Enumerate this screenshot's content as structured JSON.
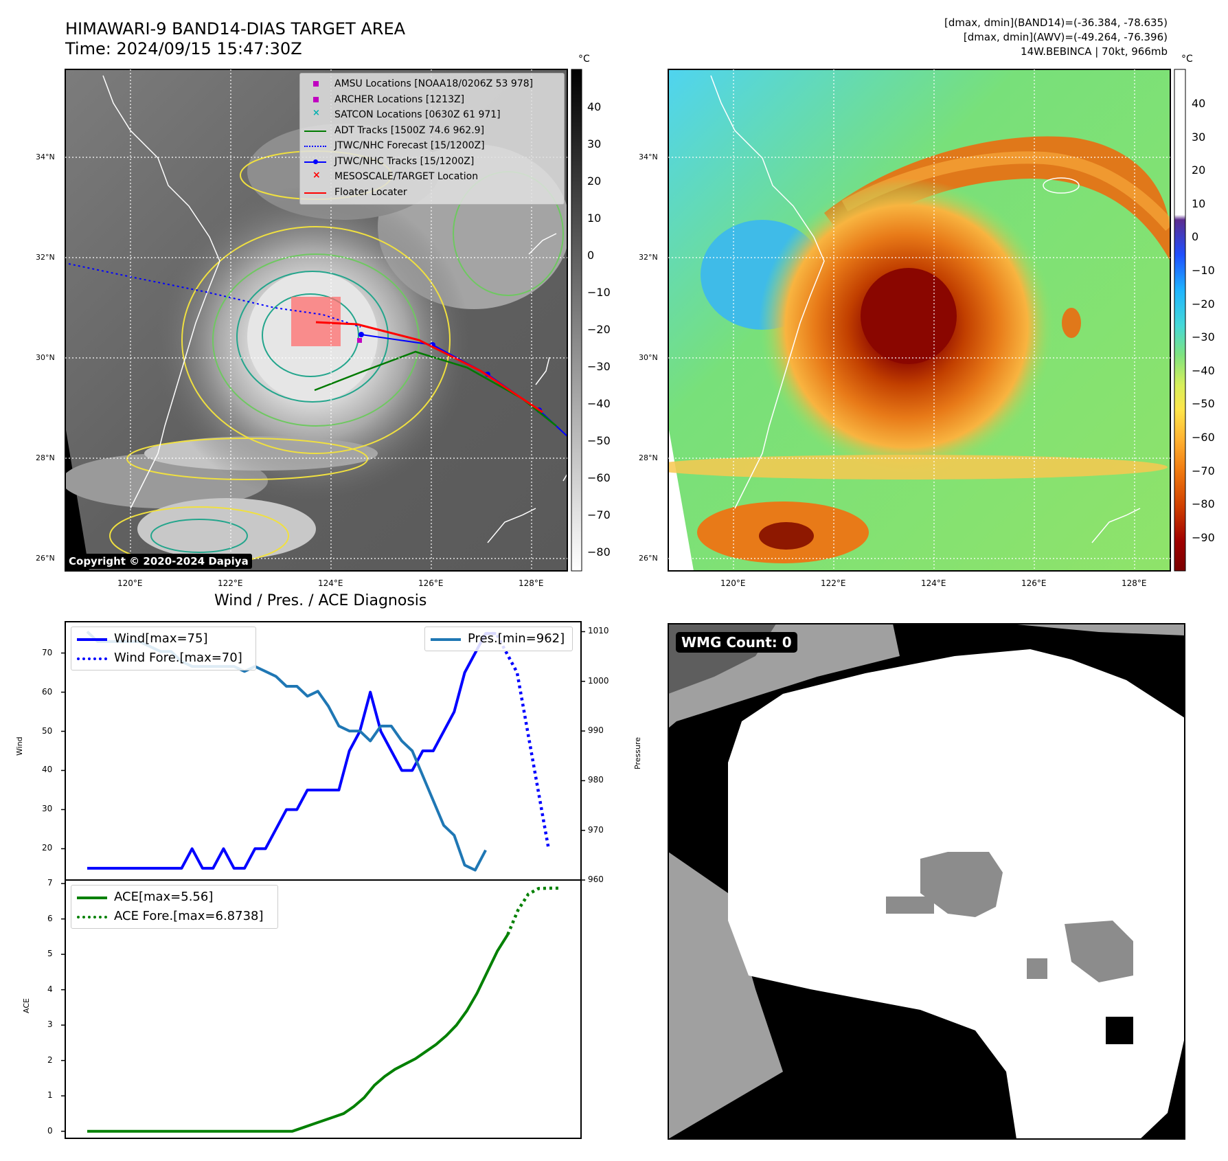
{
  "header": {
    "title": "HIMAWARI-9 BAND14-DIAS TARGET AREA",
    "time": "Time: 2024/09/15 15:47:30Z",
    "stats_band14": "[dmax, dmin](BAND14)=(-36.384, -78.635)",
    "stats_awv": "[dmax, dmin](AWV)=(-49.264, -76.396)",
    "storm": "14W.BEBINCA | 70kt, 966mb"
  },
  "maps": {
    "lat_labels": [
      "34°N",
      "32°N",
      "30°N",
      "28°N",
      "26°N"
    ],
    "lon_labels": [
      "120°E",
      "122°E",
      "124°E",
      "126°E",
      "128°E"
    ],
    "ir_colorbar": {
      "unit": "°C",
      "ticks": [
        "40",
        "30",
        "20",
        "10",
        "0",
        "−10",
        "−20",
        "−30",
        "−40",
        "−50",
        "−60",
        "−70",
        "−80"
      ]
    },
    "enh_colorbar": {
      "unit": "°C",
      "ticks": [
        "40",
        "30",
        "20",
        "10",
        "0",
        "−10",
        "−20",
        "−30",
        "−40",
        "−50",
        "−60",
        "−70",
        "−80",
        "−90"
      ]
    },
    "copyright": "Copyright © 2020-2024 Dapiya",
    "legend": [
      {
        "label": "AMSU Locations [NOAA18/0206Z 53 978]",
        "kind": "square",
        "color": "#c000c0"
      },
      {
        "label": "ARCHER Locations [1213Z]",
        "kind": "square",
        "color": "#c000c0"
      },
      {
        "label": "SATCON Locations [0630Z 61 971]",
        "kind": "x",
        "color": "#00b0b0"
      },
      {
        "label": "ADT Tracks [1500Z 74.6 962.9]",
        "kind": "line",
        "color": "#007a00"
      },
      {
        "label": "JTWC/NHC Forecast [15/1200Z]",
        "kind": "dotted",
        "color": "#0000ff"
      },
      {
        "label": "JTWC/NHC Tracks [15/1200Z]",
        "kind": "linedot",
        "color": "#0000ff"
      },
      {
        "label": "MESOSCALE/TARGET Location",
        "kind": "redx",
        "color": "#ff0000"
      },
      {
        "label": "Floater Locater",
        "kind": "line",
        "color": "#ff0000"
      }
    ]
  },
  "wmg": {
    "label": "WMG Count: 0"
  },
  "chart_data": [
    {
      "type": "line",
      "title": "Wind / Pres. / ACE Diagnosis",
      "ylabel": "Wind",
      "y2label": "Pressure",
      "ylim": [
        12,
        78
      ],
      "y2lim": [
        960,
        1012
      ],
      "yticks": [
        20,
        30,
        40,
        50,
        60,
        70
      ],
      "y2ticks": [
        960,
        970,
        980,
        990,
        1000,
        1010
      ],
      "series": [
        {
          "name": "Wind[max=75]",
          "axis": "left",
          "style": "solid",
          "color": "#0000ff",
          "values": [
            15,
            15,
            15,
            15,
            15,
            15,
            15,
            15,
            15,
            15,
            20,
            15,
            15,
            20,
            15,
            15,
            20,
            20,
            25,
            30,
            30,
            35,
            35,
            35,
            35,
            45,
            50,
            60,
            50,
            45,
            40,
            40,
            45,
            45,
            50,
            55,
            65,
            70,
            75,
            75
          ]
        },
        {
          "name": "Wind Fore.[max=70]",
          "axis": "left",
          "style": "dotted",
          "color": "#0000ff",
          "values": [
            null,
            null,
            null,
            null,
            null,
            null,
            null,
            null,
            null,
            null,
            null,
            null,
            null,
            null,
            null,
            null,
            null,
            null,
            null,
            null,
            null,
            null,
            null,
            null,
            null,
            null,
            null,
            null,
            null,
            null,
            null,
            null,
            null,
            null,
            null,
            null,
            null,
            null,
            75,
            75,
            70,
            65,
            50,
            35,
            20
          ]
        },
        {
          "name": "Pres.[min=962]",
          "axis": "right",
          "style": "solid",
          "color": "#1f77b4",
          "values": [
            1010,
            1008,
            1008,
            1008,
            1008,
            1008,
            1007,
            1006,
            1006,
            1004,
            1003,
            1003,
            1003,
            1003,
            1003,
            1002,
            1003,
            1002,
            1001,
            999,
            999,
            997,
            998,
            995,
            991,
            990,
            990,
            988,
            991,
            991,
            988,
            986,
            981,
            976,
            971,
            969,
            963,
            962,
            966
          ]
        }
      ]
    },
    {
      "type": "line",
      "ylabel": "ACE",
      "ylim": [
        -0.2,
        7.1
      ],
      "yticks": [
        0,
        1,
        2,
        3,
        4,
        5,
        6,
        7
      ],
      "series": [
        {
          "name": "ACE[max=5.56]",
          "style": "solid",
          "color": "#008000",
          "values": [
            0,
            0,
            0,
            0,
            0,
            0,
            0,
            0,
            0,
            0,
            0,
            0,
            0,
            0,
            0,
            0,
            0,
            0,
            0,
            0,
            0,
            0.1,
            0.2,
            0.3,
            0.4,
            0.5,
            0.7,
            0.95,
            1.3,
            1.55,
            1.75,
            1.9,
            2.05,
            2.25,
            2.45,
            2.7,
            3.0,
            3.4,
            3.9,
            4.5,
            5.1,
            5.56
          ]
        },
        {
          "name": "ACE Fore.[max=6.8738]",
          "style": "dotted",
          "color": "#008000",
          "values": [
            null,
            null,
            null,
            null,
            null,
            null,
            null,
            null,
            null,
            null,
            null,
            null,
            null,
            null,
            null,
            null,
            null,
            null,
            null,
            null,
            null,
            null,
            null,
            null,
            null,
            null,
            null,
            null,
            null,
            null,
            null,
            null,
            null,
            null,
            null,
            null,
            null,
            null,
            null,
            null,
            null,
            5.56,
            6.25,
            6.7,
            6.86,
            6.87,
            6.87
          ]
        }
      ]
    }
  ]
}
